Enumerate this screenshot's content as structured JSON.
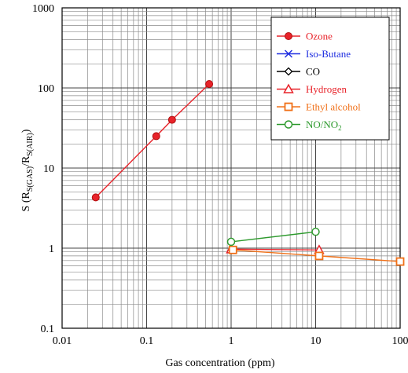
{
  "chart_data": {
    "type": "line",
    "xscale": "log",
    "yscale": "log",
    "xlim": [
      0.01,
      100
    ],
    "ylim": [
      0.1,
      1000
    ],
    "grid": true,
    "xlabel": "Gas concentration (ppm)",
    "ylabel": {
      "prefix": "S (R",
      "sub1": "S(GAS)",
      "mid": "/R",
      "sub2": "S(AIR)",
      "suffix": ")"
    },
    "x_ticks": [
      "0.01",
      "0.1",
      "1",
      "10",
      "100"
    ],
    "y_ticks": [
      "0.1",
      "1",
      "10",
      "100",
      "1000"
    ],
    "legend": {
      "placement": "top-right",
      "entries": [
        {
          "name": "Ozone",
          "color": "#e8232a",
          "marker": "circle-filled",
          "series": 0
        },
        {
          "name": "Iso-Butane",
          "color": "#1f2ee0",
          "marker": "x",
          "series": -1
        },
        {
          "name": "CO",
          "color": "#000000",
          "marker": "diamond",
          "series": -1
        },
        {
          "name": "Hydrogen",
          "color": "#e8232a",
          "marker": "triangle",
          "series": 1
        },
        {
          "name": "Ethyl alcohol",
          "color": "#f07018",
          "marker": "square",
          "series": 2
        },
        {
          "name": "NO/NO",
          "name_sub": "2",
          "color": "#2e9a2e",
          "marker": "circle-open",
          "series": 3
        }
      ]
    },
    "series": [
      {
        "name": "Ozone",
        "color": "#e8232a",
        "marker": "circle-filled",
        "points": [
          [
            0.025,
            4.3
          ],
          [
            0.13,
            25
          ],
          [
            0.2,
            40
          ],
          [
            0.55,
            112
          ]
        ]
      },
      {
        "name": "Hydrogen",
        "color": "#e8232a",
        "marker": "triangle",
        "points": [
          [
            1.0,
            0.97
          ],
          [
            11,
            0.95
          ]
        ]
      },
      {
        "name": "Ethyl alcohol",
        "color": "#f07018",
        "marker": "square",
        "points": [
          [
            1.05,
            0.95
          ],
          [
            11,
            0.8
          ],
          [
            100,
            0.68
          ]
        ]
      },
      {
        "name": "NO/NO2",
        "color": "#2e9a2e",
        "marker": "circle-open",
        "points": [
          [
            1.0,
            1.2
          ],
          [
            10,
            1.6
          ]
        ]
      }
    ]
  }
}
